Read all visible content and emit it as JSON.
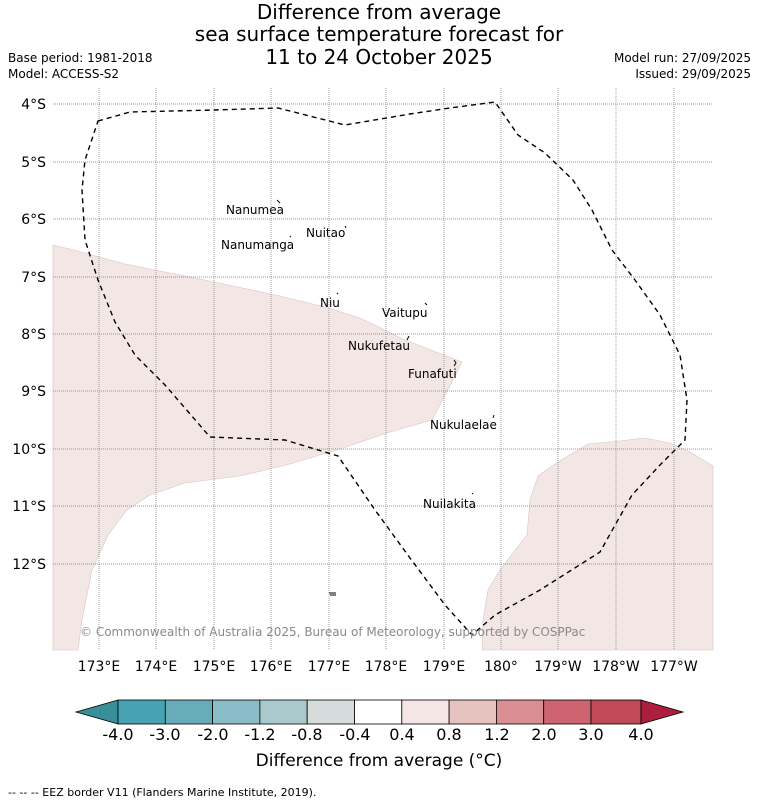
{
  "title": {
    "line1": "Difference from average",
    "line2": "sea surface temperature forecast for",
    "line3": "11 to 24 October 2025"
  },
  "meta": {
    "base_period": "Base period: 1981-2018",
    "model": "Model: ACCESS-S2",
    "model_run": "Model run: 27/09/2025",
    "issued": "Issued: 29/09/2025"
  },
  "map": {
    "lat_labels": [
      "4°S",
      "5°S",
      "6°S",
      "7°S",
      "8°S",
      "9°S",
      "10°S",
      "11°S",
      "12°S"
    ],
    "lon_labels": [
      "173°E",
      "174°E",
      "175°E",
      "176°E",
      "177°E",
      "178°E",
      "179°E",
      "180°",
      "179°W",
      "178°W",
      "177°W"
    ],
    "islands": [
      "Nanumea",
      "Nuitao",
      "Nanumanga",
      "Niu",
      "Vaitupu",
      "Nukufetau",
      "Funafuti",
      "Nukulaelae",
      "Nuilakita"
    ],
    "copyright": "© Commonwealth of Australia 2025, Bureau of Meteorology, supported by COSPPac",
    "anomaly_fill_color": "#f3e7e6"
  },
  "colorbar": {
    "ticks": [
      "-4.0",
      "-3.0",
      "-2.0",
      "-1.2",
      "-0.8",
      "-0.4",
      "0.4",
      "0.8",
      "1.2",
      "2.0",
      "3.0",
      "4.0"
    ],
    "colors": [
      "#3a8e99",
      "#47a3b3",
      "#68acba",
      "#89bcc6",
      "#a9c9cc",
      "#d6dbdc",
      "#ffffff",
      "#f4e6e5",
      "#e7c3c0",
      "#d98e94",
      "#cd6470",
      "#c14a58",
      "#ad1e3e"
    ],
    "label": "Difference from average (°C)"
  },
  "footnote": "--  --  -- EEZ border V11 (Flanders Marine Institute, 2019)."
}
